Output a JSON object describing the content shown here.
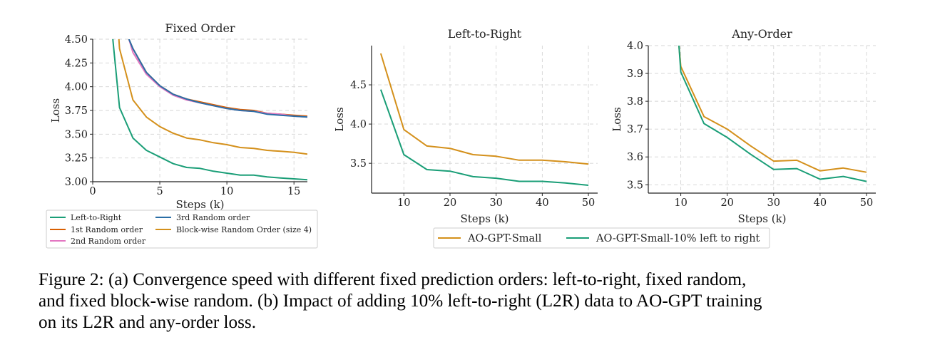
{
  "colors": {
    "green": "#1a9e77",
    "orange": "#d4901b",
    "red": "#d95f02",
    "pink": "#e377c2",
    "blue": "#2a6ea6",
    "grid": "#d4d4d4",
    "axis": "#222222"
  },
  "chart_data": [
    {
      "type": "line",
      "title": "Fixed Order",
      "xlabel": "Steps (k)",
      "ylabel": "Loss",
      "xlim": [
        0,
        16
      ],
      "ylim": [
        3.0,
        4.5
      ],
      "xticks": [
        0,
        5,
        10,
        15
      ],
      "yticks": [
        3.0,
        3.25,
        3.5,
        3.75,
        4.0,
        4.25,
        4.5
      ],
      "xtick_labels": [
        "0",
        "5",
        "10",
        "15"
      ],
      "ytick_labels": [
        "3.00",
        "3.25",
        "3.50",
        "3.75",
        "4.00",
        "4.25",
        "4.50"
      ],
      "grid": true,
      "legend_placement": "below",
      "series": [
        {
          "name": "Left-to-Right",
          "color_key": "green",
          "x": [
            1.5,
            2,
            3,
            4,
            5,
            6,
            7,
            8,
            9,
            10,
            11,
            12,
            13,
            14,
            15,
            16
          ],
          "y": [
            4.5,
            3.78,
            3.46,
            3.33,
            3.26,
            3.19,
            3.15,
            3.14,
            3.11,
            3.09,
            3.07,
            3.07,
            3.05,
            3.04,
            3.03,
            3.02
          ]
        },
        {
          "name": "1st Random order",
          "color_key": "red",
          "x": [
            2.7,
            3,
            4,
            5,
            6,
            7,
            8,
            9,
            10,
            11,
            12,
            13,
            14,
            15,
            16
          ],
          "y": [
            4.5,
            4.4,
            4.15,
            4.01,
            3.92,
            3.87,
            3.84,
            3.81,
            3.78,
            3.76,
            3.75,
            3.72,
            3.71,
            3.7,
            3.69
          ]
        },
        {
          "name": "2nd Random order",
          "color_key": "pink",
          "x": [
            2.7,
            3,
            4,
            5,
            6,
            7,
            8,
            9,
            10,
            11,
            12,
            13,
            14,
            15,
            16
          ],
          "y": [
            4.5,
            4.36,
            4.13,
            4.0,
            3.91,
            3.86,
            3.83,
            3.8,
            3.77,
            3.75,
            3.74,
            3.72,
            3.71,
            3.69,
            3.68
          ]
        },
        {
          "name": "3rd Random order",
          "color_key": "blue",
          "x": [
            2.7,
            3,
            4,
            5,
            6,
            7,
            8,
            9,
            10,
            11,
            12,
            13,
            14,
            15,
            16
          ],
          "y": [
            4.5,
            4.4,
            4.15,
            4.01,
            3.92,
            3.87,
            3.83,
            3.8,
            3.77,
            3.75,
            3.74,
            3.71,
            3.7,
            3.69,
            3.68
          ]
        },
        {
          "name": "Block-wise Random Order (size 4)",
          "color_key": "orange",
          "x": [
            1.95,
            2,
            3,
            4,
            5,
            6,
            7,
            8,
            9,
            10,
            11,
            12,
            13,
            14,
            15,
            16
          ],
          "y": [
            4.5,
            4.4,
            3.86,
            3.68,
            3.58,
            3.51,
            3.46,
            3.44,
            3.41,
            3.39,
            3.36,
            3.35,
            3.33,
            3.32,
            3.31,
            3.29
          ]
        }
      ],
      "legend": [
        [
          "Left-to-Right",
          "3rd Random order"
        ],
        [
          "1st Random order",
          "Block-wise Random Order (size 4)"
        ],
        [
          "2nd Random order"
        ]
      ]
    },
    {
      "type": "line",
      "title": "Left-to-Right",
      "xlabel": "Steps (k)",
      "ylabel": "Loss",
      "xlim": [
        3,
        52
      ],
      "ylim": [
        3.12,
        5.0
      ],
      "xticks": [
        10,
        20,
        30,
        40,
        50
      ],
      "yticks": [
        3.5,
        4.0,
        4.5
      ],
      "xtick_labels": [
        "10",
        "20",
        "30",
        "40",
        "50"
      ],
      "ytick_labels": [
        "3.5",
        "4.0",
        "4.5"
      ],
      "grid": true,
      "series": [
        {
          "name": "AO-GPT-Small",
          "color_key": "orange",
          "x": [
            5,
            10,
            15,
            20,
            25,
            30,
            35,
            40,
            45,
            50
          ],
          "y": [
            4.9,
            3.93,
            3.72,
            3.69,
            3.61,
            3.59,
            3.54,
            3.54,
            3.52,
            3.49
          ]
        },
        {
          "name": "AO-GPT-Small-10% left to right",
          "color_key": "green",
          "x": [
            5,
            10,
            15,
            20,
            25,
            30,
            35,
            40,
            45,
            50
          ],
          "y": [
            4.44,
            3.61,
            3.42,
            3.4,
            3.33,
            3.31,
            3.27,
            3.27,
            3.25,
            3.22
          ]
        }
      ]
    },
    {
      "type": "line",
      "title": "Any-Order",
      "xlabel": "Steps (k)",
      "ylabel": "Loss",
      "xlim": [
        3,
        52
      ],
      "ylim": [
        3.47,
        4.0
      ],
      "xticks": [
        10,
        20,
        30,
        40,
        50
      ],
      "yticks": [
        3.5,
        3.6,
        3.7,
        3.8,
        3.9,
        4.0
      ],
      "xtick_labels": [
        "10",
        "20",
        "30",
        "40",
        "50"
      ],
      "ytick_labels": [
        "3.5",
        "3.6",
        "3.7",
        "3.8",
        "3.9",
        "4.0"
      ],
      "grid": true,
      "series": [
        {
          "name": "AO-GPT-Small",
          "color_key": "orange",
          "x": [
            9.6,
            10,
            15,
            20,
            25,
            30,
            35,
            40,
            45,
            50
          ],
          "y": [
            4.0,
            3.925,
            3.745,
            3.7,
            3.64,
            3.585,
            3.588,
            3.55,
            3.56,
            3.545
          ]
        },
        {
          "name": "AO-GPT-Small-10% left to right",
          "color_key": "green",
          "x": [
            9.6,
            10,
            15,
            20,
            25,
            30,
            35,
            40,
            45,
            50
          ],
          "y": [
            4.0,
            3.905,
            3.72,
            3.67,
            3.61,
            3.555,
            3.558,
            3.52,
            3.53,
            3.512
          ]
        }
      ],
      "shared_legend": [
        "AO-GPT-Small",
        "AO-GPT-Small-10% left to right"
      ]
    }
  ],
  "caption": {
    "line1": "Figure 2: (a) Convergence speed with different fixed prediction orders: left-to-right, fixed random,",
    "line2": "and fixed block-wise random. (b) Impact of adding 10% left-to-right (L2R) data to AO-GPT training",
    "line3": "on its L2R and any-order loss."
  }
}
